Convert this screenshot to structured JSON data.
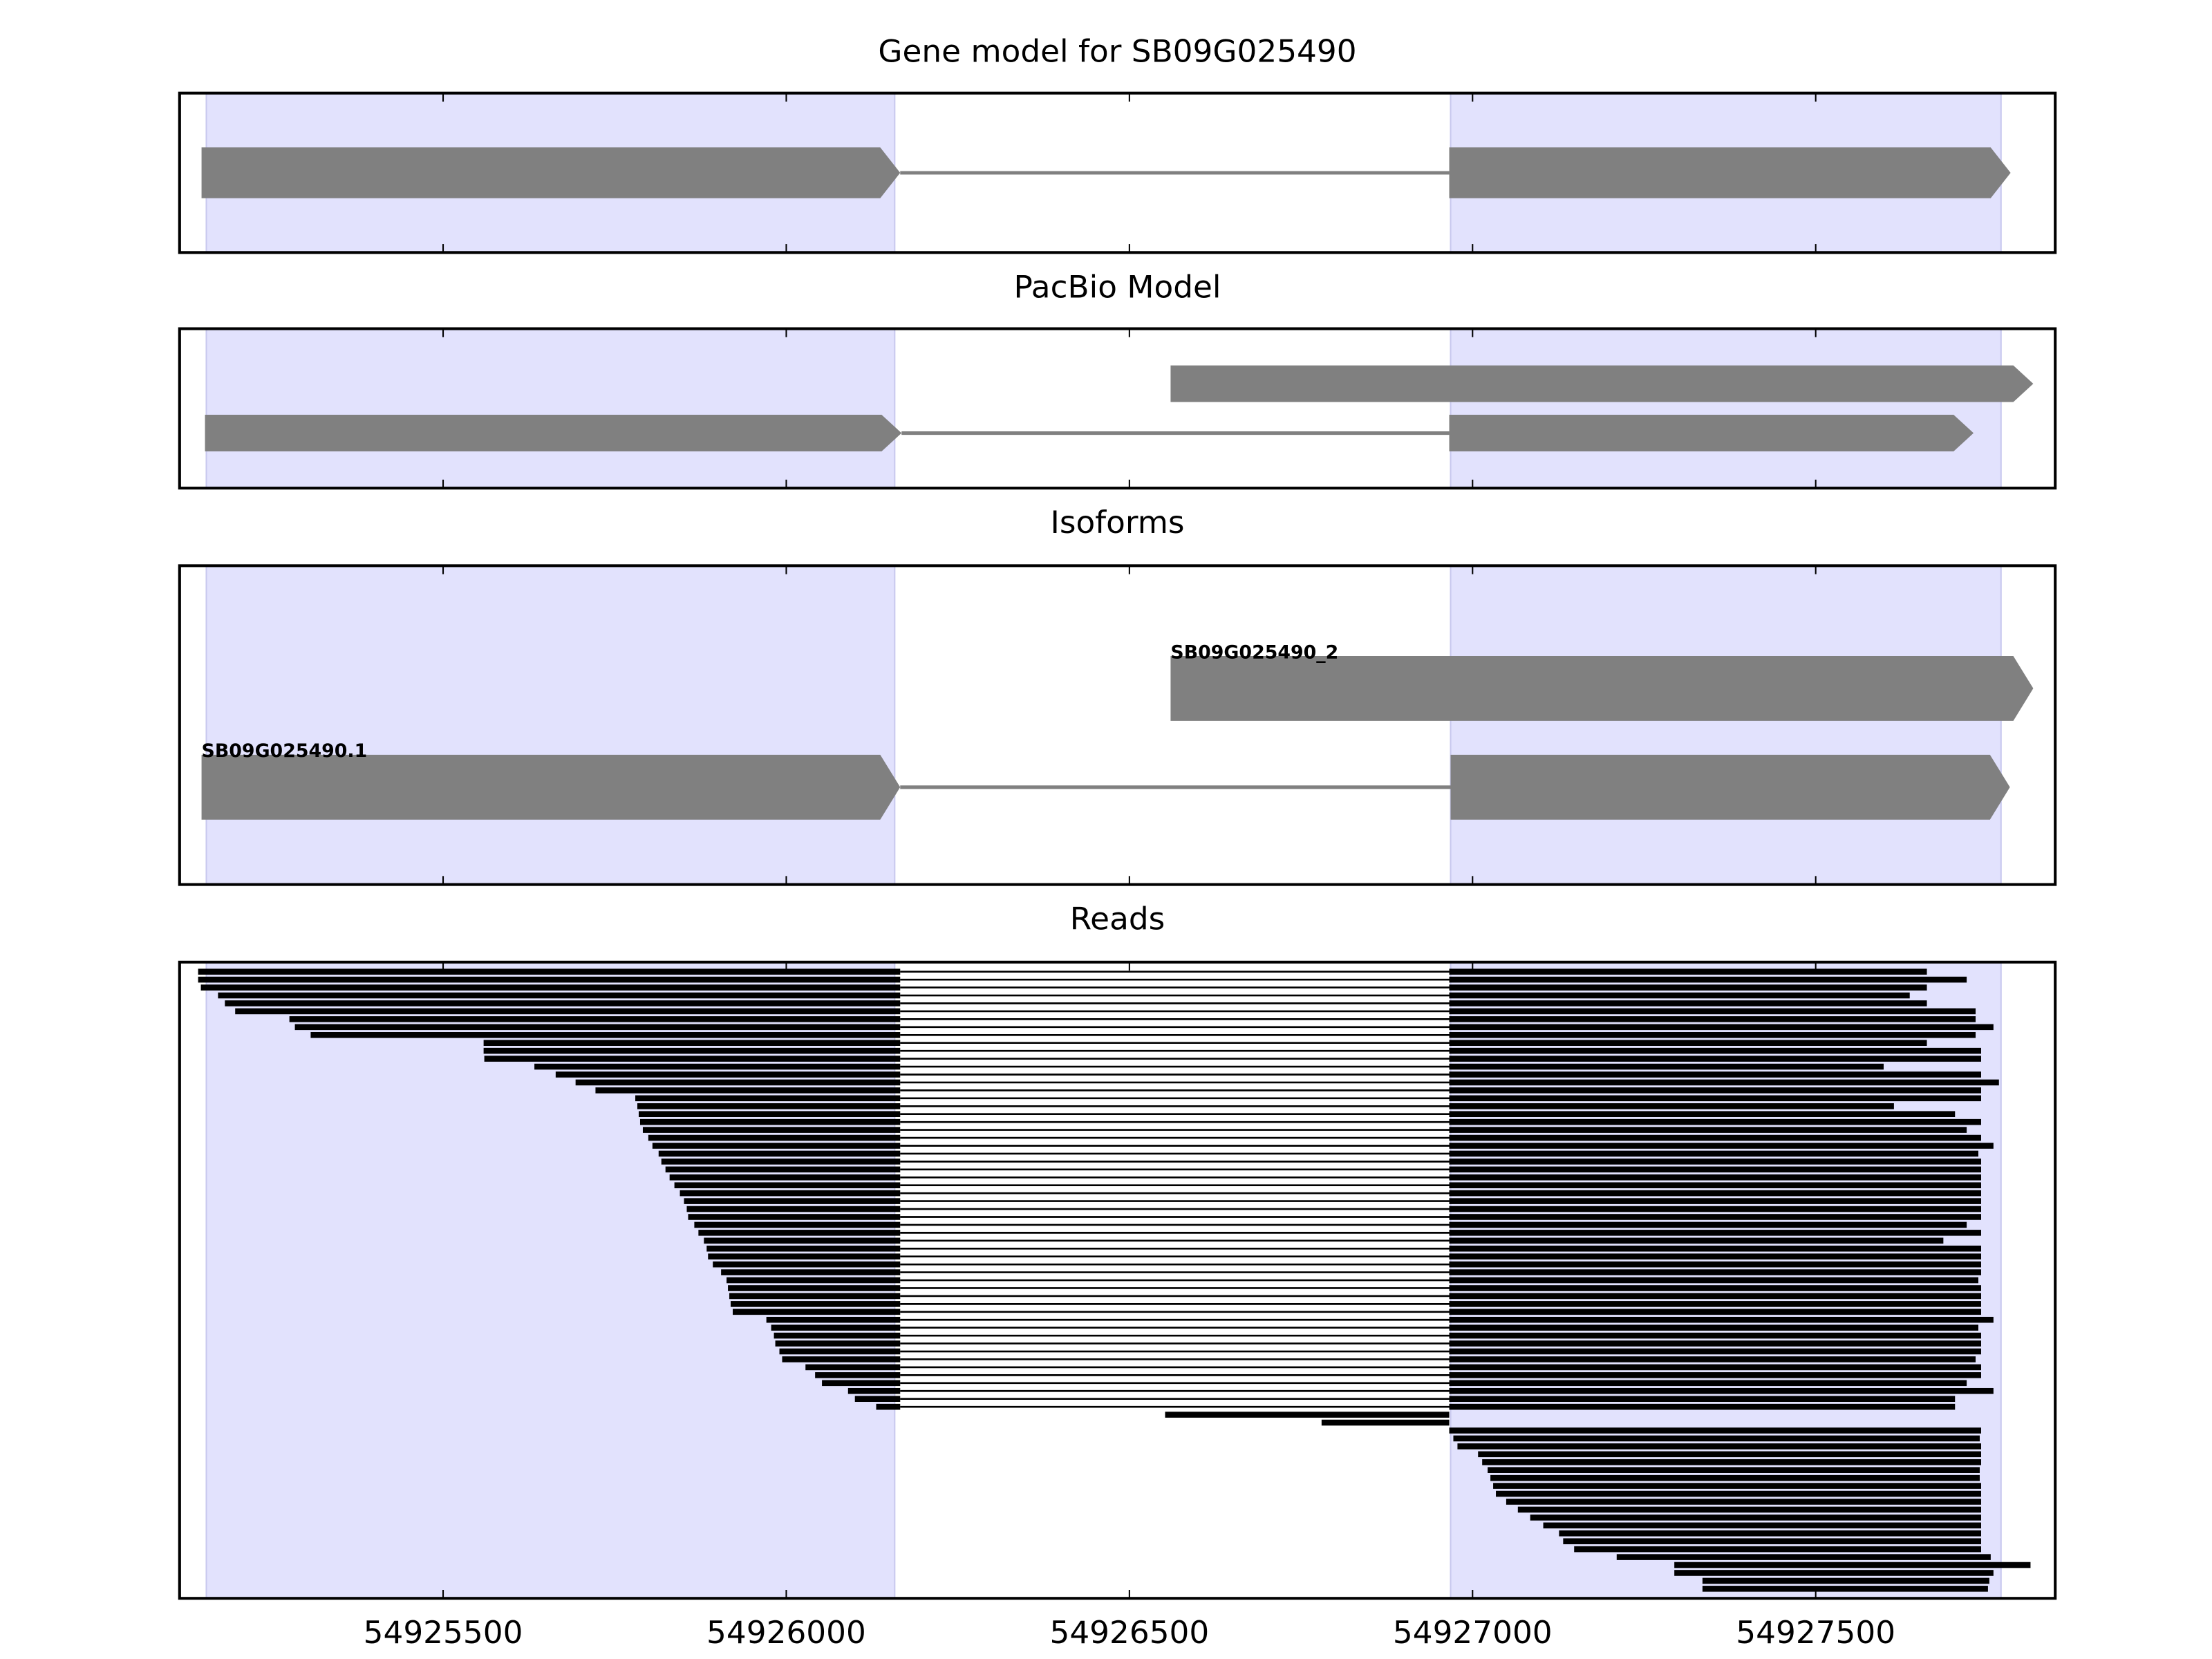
{
  "chart_data": {
    "type": "gene-track",
    "xlim": [
      54925116,
      54927849
    ],
    "xticks": [
      54925500,
      54926000,
      54926500,
      54927000,
      54927500
    ],
    "exon_regions": [
      [
        54925155,
        54926158
      ],
      [
        54926968,
        54927770
      ]
    ],
    "shade_color": "#e2e2fd",
    "feature_color": "#808080",
    "read_color": "#000000",
    "intron": [
      54926166,
      54926966
    ],
    "panels": [
      {
        "title": "Gene model for SB09G025490",
        "features": [
          {
            "blocks": [
              [
                54925148,
                54926166
              ],
              [
                54926966,
                54927784
              ]
            ]
          }
        ]
      },
      {
        "title": "PacBio Model",
        "features": [
          {
            "blocks": [
              [
                54926560,
                54927817
              ]
            ]
          },
          {
            "blocks": [
              [
                54925153,
                54926168
              ],
              [
                54926966,
                54927730
              ]
            ]
          }
        ]
      },
      {
        "title": "Isoforms",
        "features": [
          {
            "label": "SB09G025490_2",
            "blocks": [
              [
                54926560,
                54927817
              ]
            ]
          },
          {
            "label": "SB09G025490.1",
            "blocks": [
              [
                54925148,
                54926166
              ],
              [
                54926968,
                54927783
              ]
            ]
          }
        ]
      },
      {
        "title": "Reads",
        "reads": [
          [
            54925143,
            54927662
          ],
          [
            54925143,
            54927720
          ],
          [
            54925147,
            54927662
          ],
          [
            54925172,
            54927637
          ],
          [
            54925182,
            54927662
          ],
          [
            54925197,
            54927733
          ],
          [
            54925276,
            54927733
          ],
          [
            54925284,
            54927759
          ],
          [
            54925307,
            54927733
          ],
          [
            54925559,
            54927662
          ],
          [
            54925559,
            54927741
          ],
          [
            54925560,
            54927741
          ],
          [
            54925633,
            54927599
          ],
          [
            54925664,
            54927741
          ],
          [
            54925693,
            54927767
          ],
          [
            54925722,
            54927741
          ],
          [
            54925780,
            54927741
          ],
          [
            54925783,
            54927614
          ],
          [
            54925785,
            54927703
          ],
          [
            54925787,
            54927741
          ],
          [
            54925791,
            54927720
          ],
          [
            54925799,
            54927741
          ],
          [
            54925805,
            54927759
          ],
          [
            54925814,
            54927737
          ],
          [
            54925818,
            54927741
          ],
          [
            54925824,
            54927741
          ],
          [
            54925830,
            54927741
          ],
          [
            54925837,
            54927741
          ],
          [
            54925845,
            54927741
          ],
          [
            54925851,
            54927741
          ],
          [
            54925855,
            54927741
          ],
          [
            54925857,
            54927741
          ],
          [
            54925866,
            54927720
          ],
          [
            54925872,
            54927741
          ],
          [
            54925880,
            54927686
          ],
          [
            54925884,
            54927741
          ],
          [
            54925886,
            54927741
          ],
          [
            54925893,
            54927741
          ],
          [
            54925905,
            54927741
          ],
          [
            54925913,
            54927737
          ],
          [
            54925915,
            54927741
          ],
          [
            54925917,
            54927741
          ],
          [
            54925919,
            54927741
          ],
          [
            54925922,
            54927741
          ],
          [
            54925971,
            54927759
          ],
          [
            54925978,
            54927737
          ],
          [
            54925982,
            54927741
          ],
          [
            54925984,
            54927741
          ],
          [
            54925990,
            54927741
          ],
          [
            54925994,
            54927733
          ],
          [
            54926028,
            54927741
          ],
          [
            54926042,
            54927741
          ],
          [
            54926052,
            54927720
          ],
          [
            54926090,
            54927759
          ],
          [
            54926100,
            54927703
          ],
          [
            54926131,
            54927703
          ],
          [
            54926552,
            54926966
          ],
          [
            54926780,
            54926966
          ],
          [
            54926966,
            54927741
          ],
          [
            54926972,
            54927739
          ],
          [
            54926978,
            54927741
          ],
          [
            54927008,
            54927741
          ],
          [
            54927014,
            54927741
          ],
          [
            54927022,
            54927739
          ],
          [
            54927026,
            54927739
          ],
          [
            54927030,
            54927741
          ],
          [
            54927034,
            54927741
          ],
          [
            54927049,
            54927741
          ],
          [
            54927066,
            54927741
          ],
          [
            54927084,
            54927741
          ],
          [
            54927103,
            54927741
          ],
          [
            54927126,
            54927741
          ],
          [
            54927132,
            54927741
          ],
          [
            54927148,
            54927741
          ],
          [
            54927210,
            54927755
          ],
          [
            54927294,
            54927813
          ],
          [
            54927294,
            54927759
          ],
          [
            54927335,
            54927753
          ],
          [
            54927335,
            54927751
          ]
        ]
      }
    ]
  }
}
